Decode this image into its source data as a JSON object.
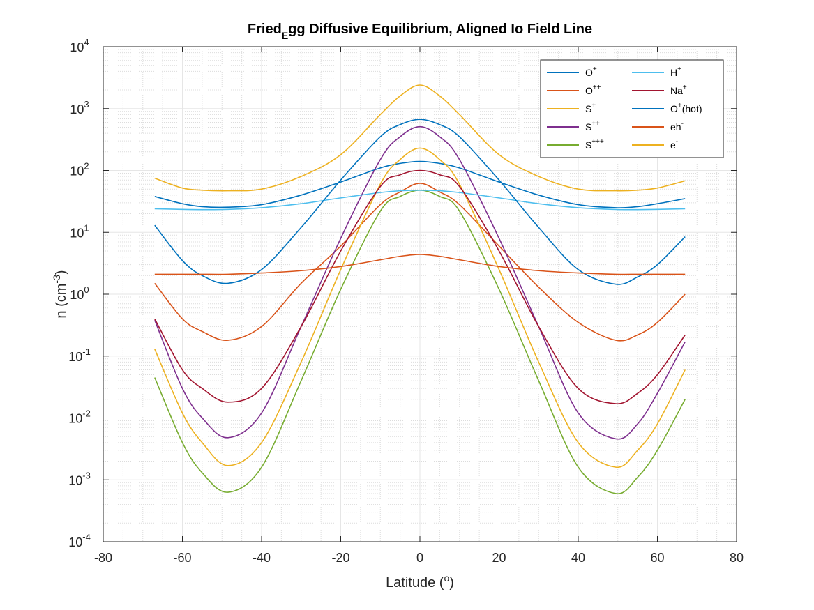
{
  "chart_data": {
    "type": "line",
    "title": {
      "main": "Fried",
      "sub": "E",
      "rest": "gg Diffusive Equilibrium, Aligned Io Field Line"
    },
    "xlabel": {
      "text": "Latitude (",
      "sup": "o",
      "end": ")"
    },
    "ylabel": {
      "text": "n (cm",
      "sup": "-3",
      "end": ")"
    },
    "xlim": [
      -80,
      80
    ],
    "ylim": [
      0.0001,
      10000
    ],
    "yscale": "log",
    "grid": true,
    "minor_grid": true,
    "legend_position": "top-right",
    "legend_columns": 2,
    "x_ticks": [
      {
        "value": -80,
        "label": "-80"
      },
      {
        "value": -60,
        "label": "-60"
      },
      {
        "value": -40,
        "label": "-40"
      },
      {
        "value": -20,
        "label": "-20"
      },
      {
        "value": 0,
        "label": "0"
      },
      {
        "value": 20,
        "label": "20"
      },
      {
        "value": 40,
        "label": "40"
      },
      {
        "value": 60,
        "label": "60"
      },
      {
        "value": 80,
        "label": "80"
      }
    ],
    "y_ticks": [
      {
        "value": 0.0001,
        "base": "10",
        "exp": "-4"
      },
      {
        "value": 0.001,
        "base": "10",
        "exp": "-3"
      },
      {
        "value": 0.01,
        "base": "10",
        "exp": "-2"
      },
      {
        "value": 0.1,
        "base": "10",
        "exp": "-1"
      },
      {
        "value": 1,
        "base": "10",
        "exp": "0"
      },
      {
        "value": 10,
        "base": "10",
        "exp": "1"
      },
      {
        "value": 100,
        "base": "10",
        "exp": "2"
      },
      {
        "value": 1000,
        "base": "10",
        "exp": "3"
      },
      {
        "value": 10000,
        "base": "10",
        "exp": "4"
      }
    ],
    "x": [
      -67,
      -60,
      -55,
      -48.5,
      -40,
      -30,
      -20,
      -10,
      -5,
      0,
      5,
      10,
      20,
      30,
      40,
      49.5,
      55,
      60,
      67
    ],
    "series": [
      {
        "legend": "O",
        "sup": "+",
        "color": "#0072BD",
        "values": [
          38,
          29,
          26,
          25.5,
          28,
          40,
          65,
          110,
          130,
          140,
          130,
          110,
          65,
          40,
          28,
          25,
          26,
          29,
          35
        ]
      },
      {
        "legend": "O",
        "sup": "++",
        "color": "#D95319",
        "values": [
          1.5,
          0.4,
          0.25,
          0.18,
          0.3,
          1.5,
          6,
          28,
          45,
          62,
          45,
          28,
          6,
          1.3,
          0.35,
          0.18,
          0.22,
          0.35,
          1.0
        ]
      },
      {
        "legend": "S",
        "sup": "+",
        "color": "#EDB120",
        "values": [
          0.13,
          0.012,
          0.004,
          0.0017,
          0.004,
          0.08,
          2.5,
          60,
          150,
          230,
          150,
          60,
          2.5,
          0.08,
          0.004,
          0.0016,
          0.003,
          0.008,
          0.06
        ]
      },
      {
        "legend": "S",
        "sup": "++",
        "color": "#7E2F8E",
        "values": [
          0.38,
          0.03,
          0.01,
          0.0048,
          0.012,
          0.3,
          8,
          150,
          350,
          510,
          350,
          150,
          8,
          0.3,
          0.012,
          0.0046,
          0.008,
          0.025,
          0.17
        ]
      },
      {
        "legend": "S",
        "sup": "+++",
        "color": "#77AC30",
        "values": [
          0.045,
          0.004,
          0.0013,
          0.00063,
          0.0016,
          0.04,
          1.2,
          22,
          38,
          48,
          38,
          22,
          1.2,
          0.04,
          0.0016,
          0.0006,
          0.0011,
          0.003,
          0.02
        ]
      },
      {
        "legend": "H",
        "sup": "+",
        "color": "#4DBEEE",
        "values": [
          24,
          23.5,
          23.3,
          23.5,
          25,
          29,
          36,
          44,
          47,
          48,
          47,
          44,
          36,
          29,
          25,
          23.4,
          23.3,
          23.5,
          24
        ]
      },
      {
        "legend": "Na",
        "sup": "+",
        "color": "#A2142F",
        "values": [
          0.4,
          0.06,
          0.03,
          0.018,
          0.03,
          0.3,
          5,
          55,
          85,
          100,
          85,
          55,
          5,
          0.3,
          0.03,
          0.017,
          0.025,
          0.05,
          0.22
        ]
      },
      {
        "legend": "O",
        "sup": "+",
        "suffix": "(hot)",
        "color": "#0072BD",
        "values": [
          13,
          3.5,
          2.0,
          1.5,
          2.5,
          12,
          70,
          350,
          550,
          670,
          550,
          350,
          70,
          12,
          2.5,
          1.45,
          1.9,
          3.0,
          8.5
        ]
      },
      {
        "legend": "eh",
        "sup": "-",
        "color": "#D95319",
        "values": [
          2.1,
          2.1,
          2.1,
          2.1,
          2.2,
          2.4,
          2.8,
          3.6,
          4.1,
          4.4,
          4.1,
          3.6,
          2.8,
          2.4,
          2.2,
          2.1,
          2.1,
          2.1,
          2.1
        ]
      },
      {
        "legend": "e",
        "sup": "-",
        "color": "#EDB120",
        "values": [
          75,
          52,
          48,
          47,
          50,
          80,
          180,
          800,
          1600,
          2400,
          1600,
          800,
          180,
          80,
          50,
          47,
          48,
          52,
          68
        ]
      }
    ]
  }
}
